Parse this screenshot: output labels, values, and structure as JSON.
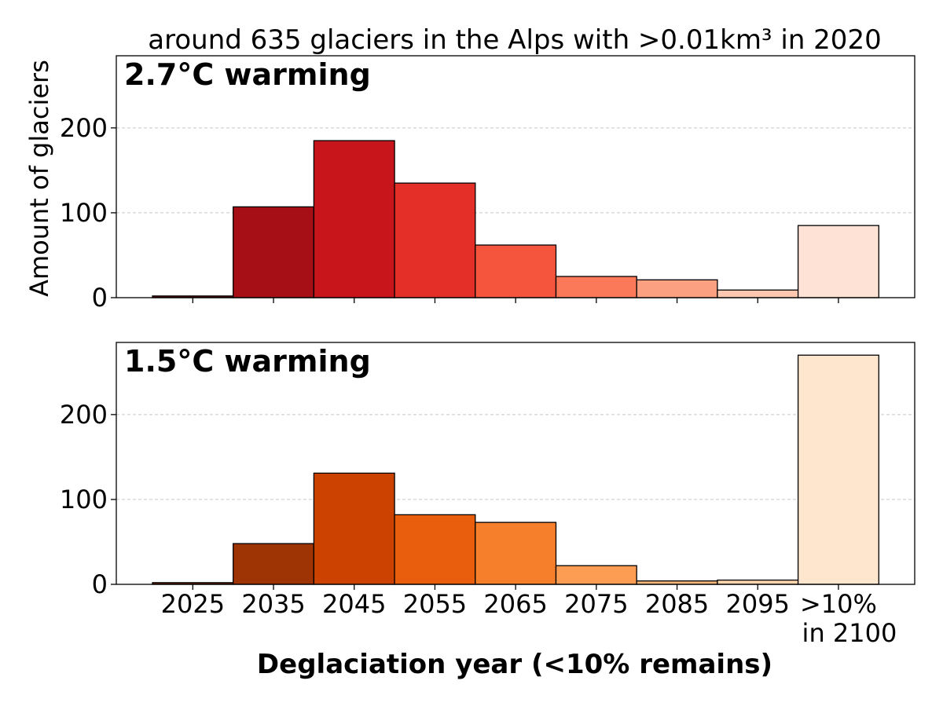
{
  "chart_data": {
    "title": "around 635 glaciers in the Alps with >0.01km³ in 2020",
    "xlabel": "Deglaciation year (<10% remains)",
    "ylabel": "Amount of glaciers",
    "type": "bar",
    "categories": [
      "2025",
      "2035",
      "2045",
      "2055",
      "2065",
      "2075",
      "2085",
      "2095",
      ">10%\nin 2100"
    ],
    "ylim": [
      0,
      285
    ],
    "yticks": [
      0,
      100,
      200
    ],
    "grid": "horizontal-dashed",
    "panels": [
      {
        "label": "2.7°C warming",
        "values": [
          2,
          107,
          185,
          135,
          62,
          25,
          21,
          9,
          85
        ],
        "colors": [
          "#67000d",
          "#a50f15",
          "#c8151b",
          "#e32f27",
          "#f6553d",
          "#fb7858",
          "#fca082",
          "#fdc7b0",
          "#fee2d5"
        ]
      },
      {
        "label": "1.5°C warming",
        "values": [
          2,
          48,
          131,
          82,
          73,
          22,
          4,
          5,
          270
        ],
        "colors": [
          "#7f2704",
          "#9e3303",
          "#cc4301",
          "#e95e0d",
          "#f67f2c",
          "#fd9d53",
          "#fdb97d",
          "#fdd5ac",
          "#fee6ce"
        ]
      }
    ]
  }
}
